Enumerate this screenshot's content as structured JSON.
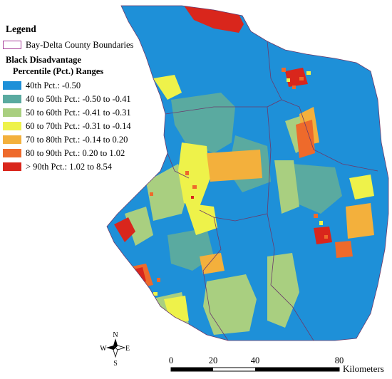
{
  "legend": {
    "title": "Legend",
    "boundary_label": "Bay-Delta County Boundaries",
    "heading": "Black Disadvantage",
    "subheading": "Percentile (Pct.) Ranges",
    "classes": [
      {
        "label": "40th Pct.: -0.50",
        "color": "#1e90d8"
      },
      {
        "label": "40 to 50th Pct.: -0.50 to -0.41",
        "color": "#5aaaa0"
      },
      {
        "label": "50 to 60th Pct.: -0.41 to -0.31",
        "color": "#a9cf80"
      },
      {
        "label": "60 to 70th Pct.: -0.31 to -0.14",
        "color": "#eef24a"
      },
      {
        "label": "70 to 80th Pct.: -0.14 to 0.20",
        "color": "#f3b03c"
      },
      {
        "label": "80 to 90th Pct.: 0.20 to 1.02",
        "color": "#ee6a2b"
      },
      {
        "label": "> 90th Pct.: 1.02 to 8.54",
        "color": "#d9261c"
      }
    ]
  },
  "north_arrow": {
    "n": "N",
    "s": "S",
    "e": "E",
    "w": "W"
  },
  "scale_bar": {
    "ticks": [
      "0",
      "20",
      "40",
      "80"
    ],
    "unit": "Kilometers"
  },
  "colors": {
    "boundary": "#a8409a",
    "sea": "#ffffff"
  }
}
